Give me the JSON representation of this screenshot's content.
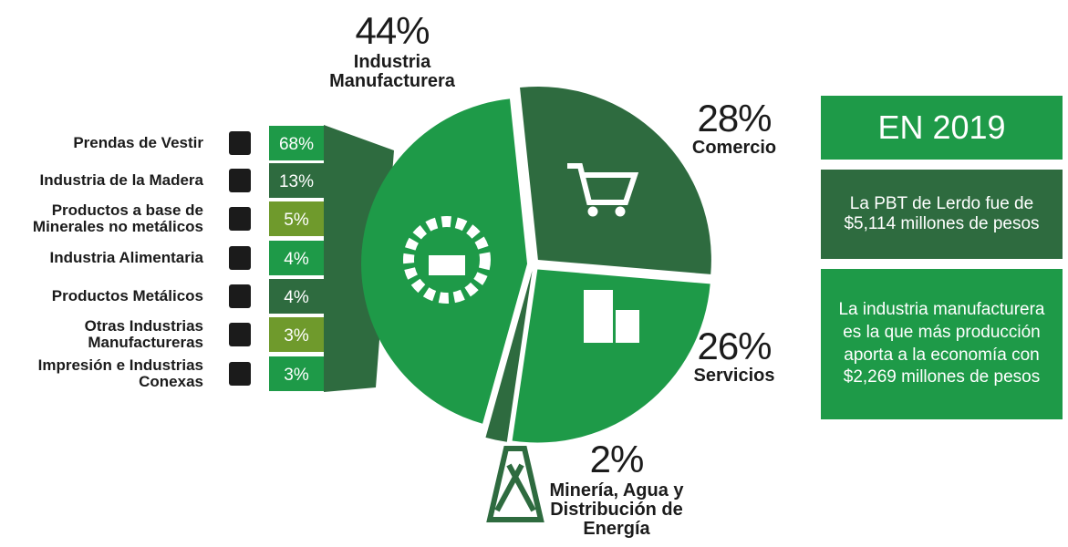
{
  "chart_data": [
    {
      "type": "pie",
      "categories": [
        "Comercio",
        "Servicios",
        "Minería, Agua y Distribución de Energía",
        "Industria Manufacturera"
      ],
      "values": [
        28,
        26,
        2,
        44
      ],
      "value_labels": [
        "28%",
        "26%",
        "2%",
        "44%"
      ],
      "colors": [
        "#2e6b3f",
        "#1e9a48",
        "#2e6b3f",
        "#1e9a48"
      ]
    },
    {
      "type": "list",
      "categories": [
        "Prendas de Vestir",
        "Industria de la Madera",
        "Productos a base de Minerales no metálicos",
        "Industria Alimentaria",
        "Productos Metálicos",
        "Otras Industrias Manufactureras",
        "Impresión e Industrias Conexas"
      ],
      "values": [
        68,
        13,
        5,
        4,
        4,
        3,
        3
      ],
      "value_labels": [
        "68%",
        "13%",
        "5%",
        "4%",
        "4%",
        "3%",
        "3%"
      ],
      "colors": [
        "#1e9a48",
        "#2e6b3f",
        "#6f9a2c",
        "#1e9a48",
        "#2e6b3f",
        "#6f9a2c",
        "#1e9a48"
      ]
    }
  ],
  "panel": {
    "heading": "EN 2019",
    "boxes": [
      "La PBT de Lerdo fue de $5,114 millones de pesos",
      "La industria manufacturera es la que más producción aporta a la economía con $2,269 millones de pesos"
    ]
  }
}
